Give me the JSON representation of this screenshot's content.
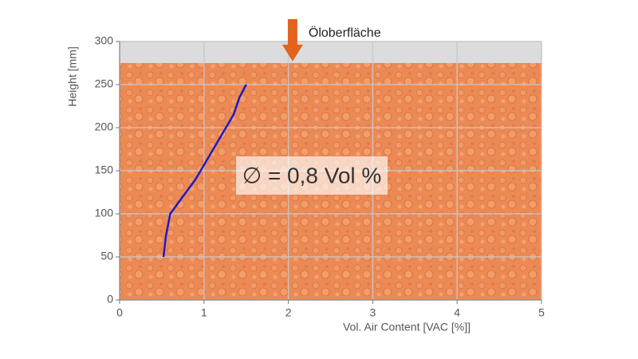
{
  "chart_data": {
    "type": "line",
    "xlabel": "Vol. Air Content [VAC [%]]",
    "ylabel": "Height [mm]",
    "xlim": [
      0,
      5
    ],
    "xticks": [
      0,
      1,
      2,
      3,
      4,
      5
    ],
    "ylim": [
      0,
      300
    ],
    "yticks": [
      0,
      50,
      100,
      150,
      200,
      250,
      300
    ],
    "grid": true,
    "oil_surface": 275,
    "surface_label": "Öloberfläche",
    "surface_x": 2.05,
    "annotation": "∅ = 0,8 Vol %",
    "series": [
      {
        "color": "#1c1cc8",
        "x": [
          0.52,
          0.55,
          0.6,
          0.75,
          0.9,
          1.05,
          1.2,
          1.35,
          1.42,
          1.5
        ],
        "values": [
          50,
          75,
          100,
          120,
          140,
          165,
          190,
          215,
          235,
          250
        ]
      }
    ]
  }
}
